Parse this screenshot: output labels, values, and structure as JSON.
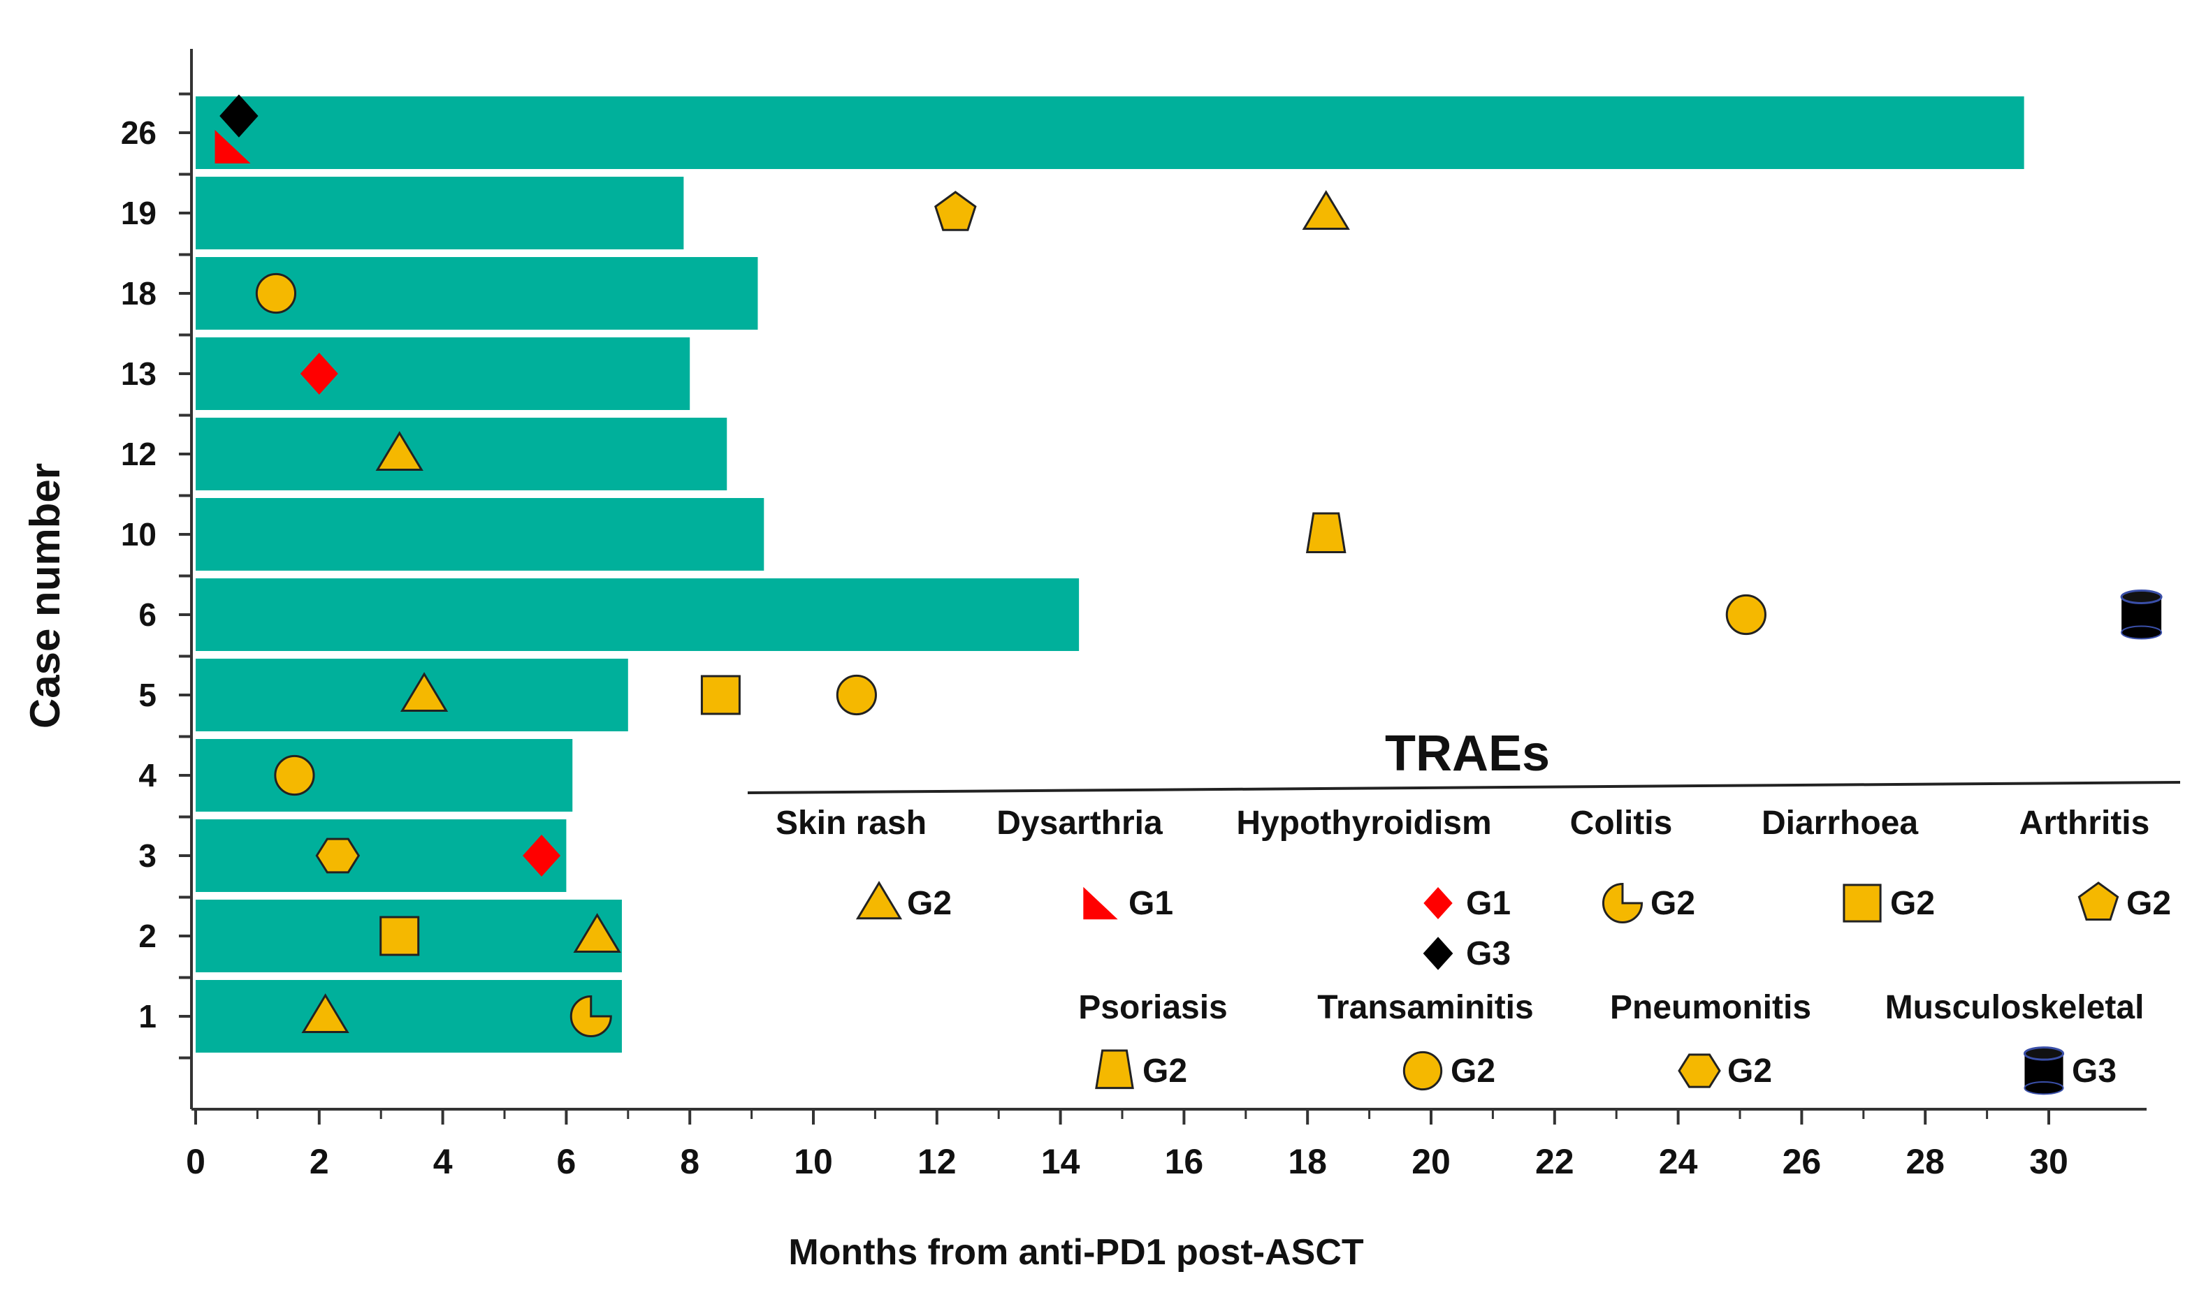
{
  "chart_data": {
    "type": "bar",
    "orientation": "horizontal",
    "xlabel": "Months from anti-PD1 post-ASCT",
    "ylabel": "Case number",
    "xlim": [
      0,
      31.5
    ],
    "xticks": [
      0,
      2,
      4,
      6,
      8,
      10,
      12,
      14,
      16,
      18,
      20,
      22,
      24,
      26,
      28,
      30
    ],
    "bar_color": "#00B09B",
    "categories": [
      "26",
      "19",
      "18",
      "13",
      "12",
      "10",
      "6",
      "5",
      "4",
      "3",
      "2",
      "1"
    ],
    "values": [
      29.6,
      7.9,
      9.1,
      8.0,
      8.6,
      9.2,
      14.3,
      7.0,
      6.1,
      6.0,
      6.9,
      6.9
    ],
    "events": [
      {
        "case": "26",
        "month": 0.7,
        "type": "Hypothyroidism",
        "grade": "G3"
      },
      {
        "case": "26",
        "month": 0.6,
        "type": "Dysarthria",
        "grade": "G1"
      },
      {
        "case": "19",
        "month": 12.3,
        "type": "Arthritis",
        "grade": "G2"
      },
      {
        "case": "19",
        "month": 18.3,
        "type": "Skin rash",
        "grade": "G2"
      },
      {
        "case": "18",
        "month": 1.3,
        "type": "Transaminitis",
        "grade": "G2"
      },
      {
        "case": "13",
        "month": 2.0,
        "type": "Hypothyroidism",
        "grade": "G1"
      },
      {
        "case": "12",
        "month": 3.3,
        "type": "Skin rash",
        "grade": "G2"
      },
      {
        "case": "10",
        "month": 18.3,
        "type": "Psoriasis",
        "grade": "G2"
      },
      {
        "case": "6",
        "month": 25.1,
        "type": "Transaminitis",
        "grade": "G2"
      },
      {
        "case": "6",
        "month": 31.5,
        "type": "Musculoskeletal",
        "grade": "G3"
      },
      {
        "case": "5",
        "month": 3.7,
        "type": "Skin rash",
        "grade": "G2"
      },
      {
        "case": "5",
        "month": 8.5,
        "type": "Diarrhoea",
        "grade": "G2"
      },
      {
        "case": "5",
        "month": 10.7,
        "type": "Transaminitis",
        "grade": "G2"
      },
      {
        "case": "4",
        "month": 1.6,
        "type": "Transaminitis",
        "grade": "G2"
      },
      {
        "case": "3",
        "month": 2.3,
        "type": "Pneumonitis",
        "grade": "G2"
      },
      {
        "case": "3",
        "month": 5.6,
        "type": "Hypothyroidism",
        "grade": "G1"
      },
      {
        "case": "2",
        "month": 3.3,
        "type": "Diarrhoea",
        "grade": "G2"
      },
      {
        "case": "2",
        "month": 6.5,
        "type": "Skin rash",
        "grade": "G2"
      },
      {
        "case": "1",
        "month": 2.1,
        "type": "Skin rash",
        "grade": "G2"
      },
      {
        "case": "1",
        "month": 6.4,
        "type": "Colitis",
        "grade": "G2"
      }
    ],
    "legend": {
      "title": "TRAEs",
      "row1": [
        {
          "name": "Skin rash",
          "items": [
            {
              "shape": "triangle",
              "grade": "G2",
              "color": "#F5B800"
            }
          ]
        },
        {
          "name": "Dysarthria",
          "items": [
            {
              "shape": "corner",
              "grade": "G1",
              "color": "#FF0000"
            }
          ]
        },
        {
          "name": "Hypothyroidism",
          "items": [
            {
              "shape": "diamond",
              "grade": "G1",
              "color": "#FF0000"
            },
            {
              "shape": "diamond",
              "grade": "G3",
              "color": "#000000"
            }
          ]
        },
        {
          "name": "Colitis",
          "items": [
            {
              "shape": "pacman",
              "grade": "G2",
              "color": "#F5B800"
            }
          ]
        },
        {
          "name": "Diarrhoea",
          "items": [
            {
              "shape": "square",
              "grade": "G2",
              "color": "#F5B800"
            }
          ]
        },
        {
          "name": "Arthritis",
          "items": [
            {
              "shape": "pentagon",
              "grade": "G2",
              "color": "#F5B800"
            }
          ]
        }
      ],
      "row2": [
        {
          "name": "Psoriasis",
          "items": [
            {
              "shape": "trapezoid",
              "grade": "G2",
              "color": "#F5B800"
            }
          ]
        },
        {
          "name": "Transaminitis",
          "items": [
            {
              "shape": "circle",
              "grade": "G2",
              "color": "#F5B800"
            }
          ]
        },
        {
          "name": "Pneumonitis",
          "items": [
            {
              "shape": "hexagon",
              "grade": "G2",
              "color": "#F5B800"
            }
          ]
        },
        {
          "name": "Musculoskeletal",
          "items": [
            {
              "shape": "cylinder",
              "grade": "G3",
              "color": "#000000"
            }
          ]
        }
      ]
    },
    "colors": {
      "grade2": "#F5B800",
      "grade1": "#FF0000",
      "grade3": "#000000"
    }
  }
}
